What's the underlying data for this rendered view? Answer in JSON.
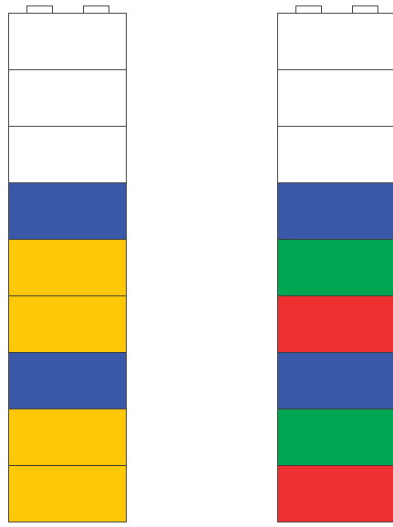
{
  "colors": {
    "white": "#ffffff",
    "blue": "#3a58a8",
    "yellow": "#fdc808",
    "green": "#00a651",
    "red": "#ee3030",
    "outline": "#3a3a3a"
  },
  "towers": [
    {
      "id": "tower-left",
      "bricks": [
        "white",
        "white",
        "white",
        "blue",
        "yellow",
        "yellow",
        "blue",
        "yellow",
        "yellow"
      ]
    },
    {
      "id": "tower-right",
      "bricks": [
        "white",
        "white",
        "white",
        "blue",
        "green",
        "red",
        "blue",
        "green",
        "red"
      ]
    }
  ]
}
